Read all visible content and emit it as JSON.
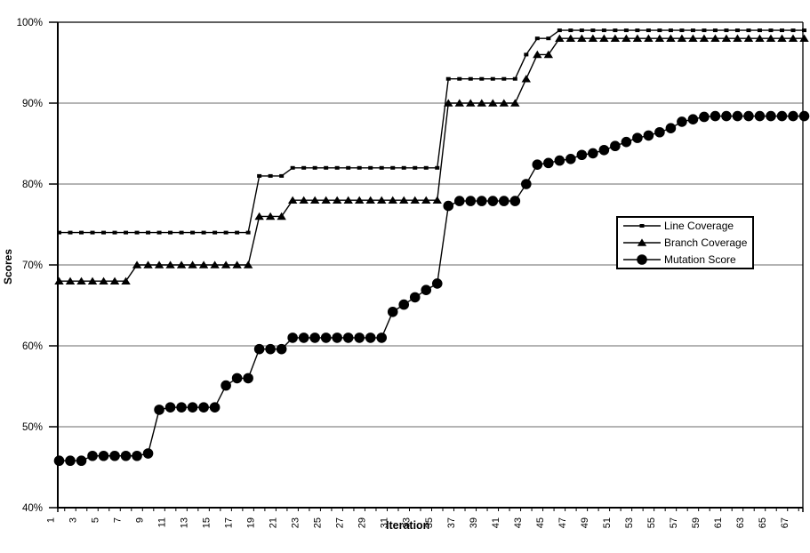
{
  "chart_data": {
    "type": "line",
    "title": "",
    "xlabel": "Iteration",
    "ylabel": "Scores",
    "ylim": [
      40,
      100
    ],
    "y_tick_step": 10,
    "y_tick_labels": [
      "40%",
      "50%",
      "60%",
      "70%",
      "80%",
      "90%",
      "100%"
    ],
    "x_tick_labels": [
      "1",
      "3",
      "5",
      "7",
      "9",
      "11",
      "13",
      "15",
      "17",
      "19",
      "21",
      "23",
      "25",
      "27",
      "29",
      "31",
      "33",
      "35",
      "37",
      "39",
      "41",
      "43",
      "45",
      "47",
      "49",
      "51",
      "53",
      "55",
      "57",
      "59",
      "61",
      "63",
      "65",
      "67"
    ],
    "grid": "horizontal-gray-solid",
    "gridline_color": "#878787",
    "axis_color": "#000000",
    "background_color": "#ffffff",
    "legend_position": "middle-right",
    "x": [
      1,
      2,
      3,
      4,
      5,
      6,
      7,
      8,
      9,
      10,
      11,
      12,
      13,
      14,
      15,
      16,
      17,
      18,
      19,
      20,
      21,
      22,
      23,
      24,
      25,
      26,
      27,
      28,
      29,
      30,
      31,
      32,
      33,
      34,
      35,
      36,
      37,
      38,
      39,
      40,
      41,
      42,
      43,
      44,
      45,
      46,
      47,
      48,
      49,
      50,
      51,
      52,
      53,
      54,
      55,
      56,
      57,
      58,
      59,
      60,
      61,
      62,
      63,
      64,
      65,
      66,
      67,
      68
    ],
    "series": [
      {
        "name": "Line Coverage",
        "marker": "square",
        "color": "#000000",
        "values": [
          74,
          74,
          74,
          74,
          74,
          74,
          74,
          74,
          74,
          74,
          74,
          74,
          74,
          74,
          74,
          74,
          74,
          74,
          81,
          81,
          81,
          82,
          82,
          82,
          82,
          82,
          82,
          82,
          82,
          82,
          82,
          82,
          82,
          82,
          82,
          93,
          93,
          93,
          93,
          93,
          93,
          93,
          96,
          98,
          98,
          99,
          99,
          99,
          99,
          99,
          99,
          99,
          99,
          99,
          99,
          99,
          99,
          99,
          99,
          99,
          99,
          99,
          99,
          99,
          99,
          99,
          99,
          99
        ]
      },
      {
        "name": "Branch Coverage",
        "marker": "triangle",
        "color": "#000000",
        "values": [
          68,
          68,
          68,
          68,
          68,
          68,
          68,
          70,
          70,
          70,
          70,
          70,
          70,
          70,
          70,
          70,
          70,
          70,
          76,
          76,
          76,
          78,
          78,
          78,
          78,
          78,
          78,
          78,
          78,
          78,
          78,
          78,
          78,
          78,
          78,
          90,
          90,
          90,
          90,
          90,
          90,
          90,
          93,
          96,
          96,
          98,
          98,
          98,
          98,
          98,
          98,
          98,
          98,
          98,
          98,
          98,
          98,
          98,
          98,
          98,
          98,
          98,
          98,
          98,
          98,
          98,
          98,
          98
        ]
      },
      {
        "name": "Mutation Score",
        "marker": "circle",
        "color": "#000000",
        "values": [
          45.8,
          45.8,
          45.8,
          46.4,
          46.4,
          46.4,
          46.4,
          46.4,
          46.7,
          52.1,
          52.4,
          52.4,
          52.4,
          52.4,
          52.4,
          55.1,
          56,
          56,
          59.6,
          59.6,
          59.6,
          61,
          61,
          61,
          61,
          61,
          61,
          61,
          61,
          61,
          64.2,
          65.1,
          66,
          66.9,
          67.7,
          77.3,
          77.9,
          77.9,
          77.9,
          77.9,
          77.9,
          77.9,
          80,
          82.4,
          82.6,
          82.9,
          83.1,
          83.6,
          83.8,
          84.2,
          84.7,
          85.2,
          85.7,
          86,
          86.4,
          86.9,
          87.7,
          88,
          88.3,
          88.4,
          88.4,
          88.4,
          88.4,
          88.4,
          88.4,
          88.4,
          88.4,
          88.4
        ]
      }
    ]
  }
}
